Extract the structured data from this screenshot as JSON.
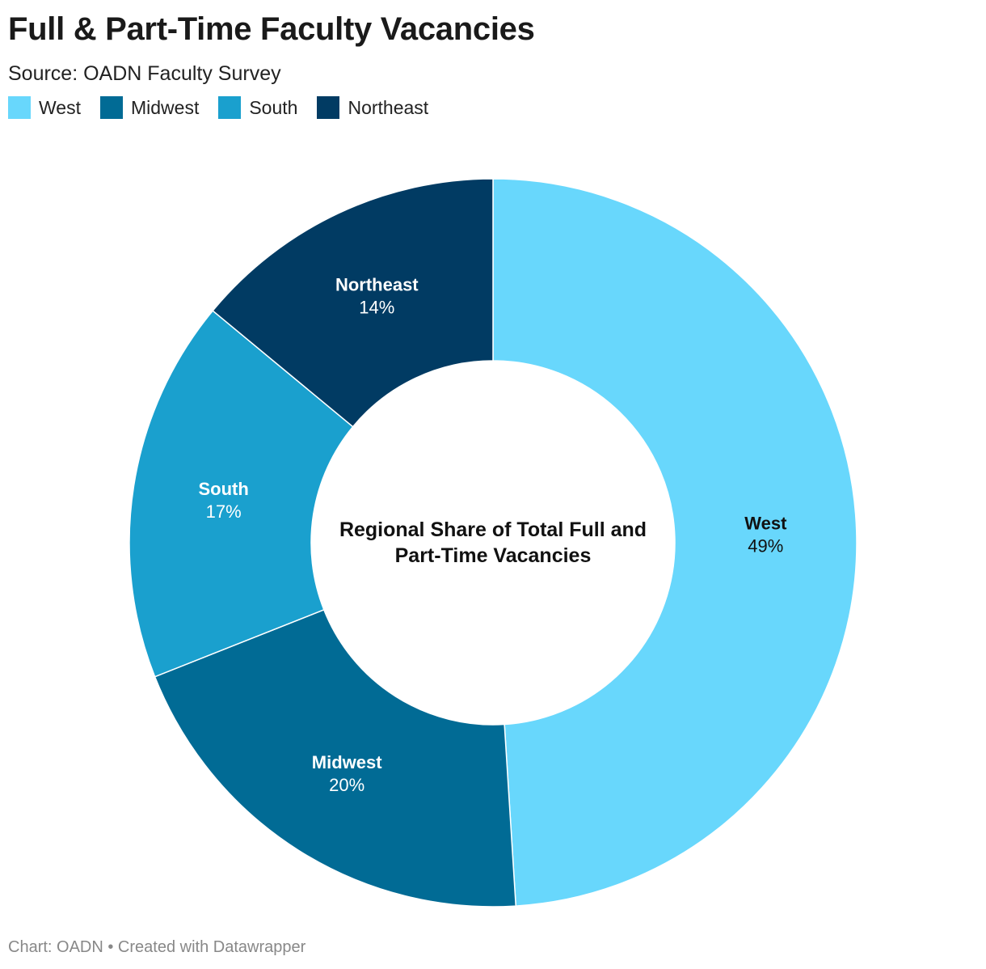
{
  "header": {
    "title": "Full & Part-Time Faculty Vacancies",
    "subtitle": "Source: OADN Faculty Survey"
  },
  "legend": [
    {
      "label": "West",
      "color": "#68d7fc"
    },
    {
      "label": "Midwest",
      "color": "#016b95"
    },
    {
      "label": "South",
      "color": "#1aa0ce"
    },
    {
      "label": "Northeast",
      "color": "#013b63"
    }
  ],
  "footer": {
    "credit": "Chart: OADN • Created with Datawrapper"
  },
  "chart_data": {
    "type": "pie",
    "donut": true,
    "center_label": "Regional Share of Total Full and Part-Time Vacancies",
    "slices": [
      {
        "label": "West",
        "value": 49,
        "display": "49%",
        "color": "#68d7fc",
        "text_color": "#111111"
      },
      {
        "label": "Midwest",
        "value": 20,
        "display": "20%",
        "color": "#016b95",
        "text_color": "#ffffff"
      },
      {
        "label": "South",
        "value": 17,
        "display": "17%",
        "color": "#1aa0ce",
        "text_color": "#ffffff"
      },
      {
        "label": "Northeast",
        "value": 14,
        "display": "14%",
        "color": "#013b63",
        "text_color": "#ffffff"
      }
    ]
  }
}
